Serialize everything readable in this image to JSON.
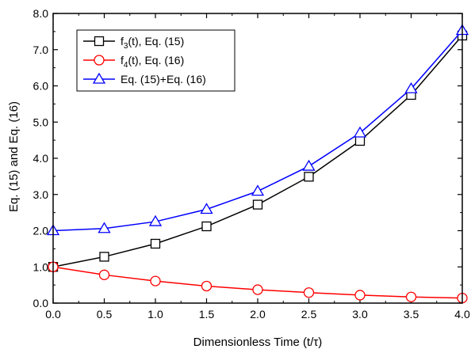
{
  "chart_data": {
    "type": "line",
    "xlabel": "Dimensionless Time (t/τ)",
    "ylabel": "Eq. (15) and Eq. (16)",
    "xlim": [
      0.0,
      4.0
    ],
    "ylim": [
      0.0,
      8.0
    ],
    "x_ticks": [
      "0.0",
      "0.5",
      "1.0",
      "1.5",
      "2.0",
      "2.5",
      "3.0",
      "3.5",
      "4.0"
    ],
    "y_ticks": [
      "0.0",
      "1.0",
      "2.0",
      "3.0",
      "4.0",
      "5.0",
      "6.0",
      "7.0",
      "8.0"
    ],
    "grid": false,
    "legend_position": "top-left",
    "x": [
      0.0,
      0.5,
      1.0,
      1.5,
      2.0,
      2.5,
      3.0,
      3.5,
      4.0
    ],
    "series": [
      {
        "name_main": "f",
        "name_sub": "3",
        "name_rest": "(t), Eq. (15)",
        "marker": "square",
        "color": "#000000",
        "values": [
          1.0,
          1.28,
          1.64,
          2.12,
          2.72,
          3.49,
          4.48,
          5.75,
          7.39
        ]
      },
      {
        "name_main": "f",
        "name_sub": "4",
        "name_rest": "(t), Eq. (16)",
        "marker": "circle",
        "color": "#ff0000",
        "values": [
          1.0,
          0.78,
          0.61,
          0.47,
          0.37,
          0.29,
          0.22,
          0.17,
          0.14
        ]
      },
      {
        "name_main": "Eq. (15)+Eq. (16)",
        "name_sub": "",
        "name_rest": "",
        "marker": "triangle",
        "color": "#0000ff",
        "values": [
          2.0,
          2.06,
          2.25,
          2.59,
          3.09,
          3.78,
          4.7,
          5.92,
          7.53
        ]
      }
    ]
  }
}
